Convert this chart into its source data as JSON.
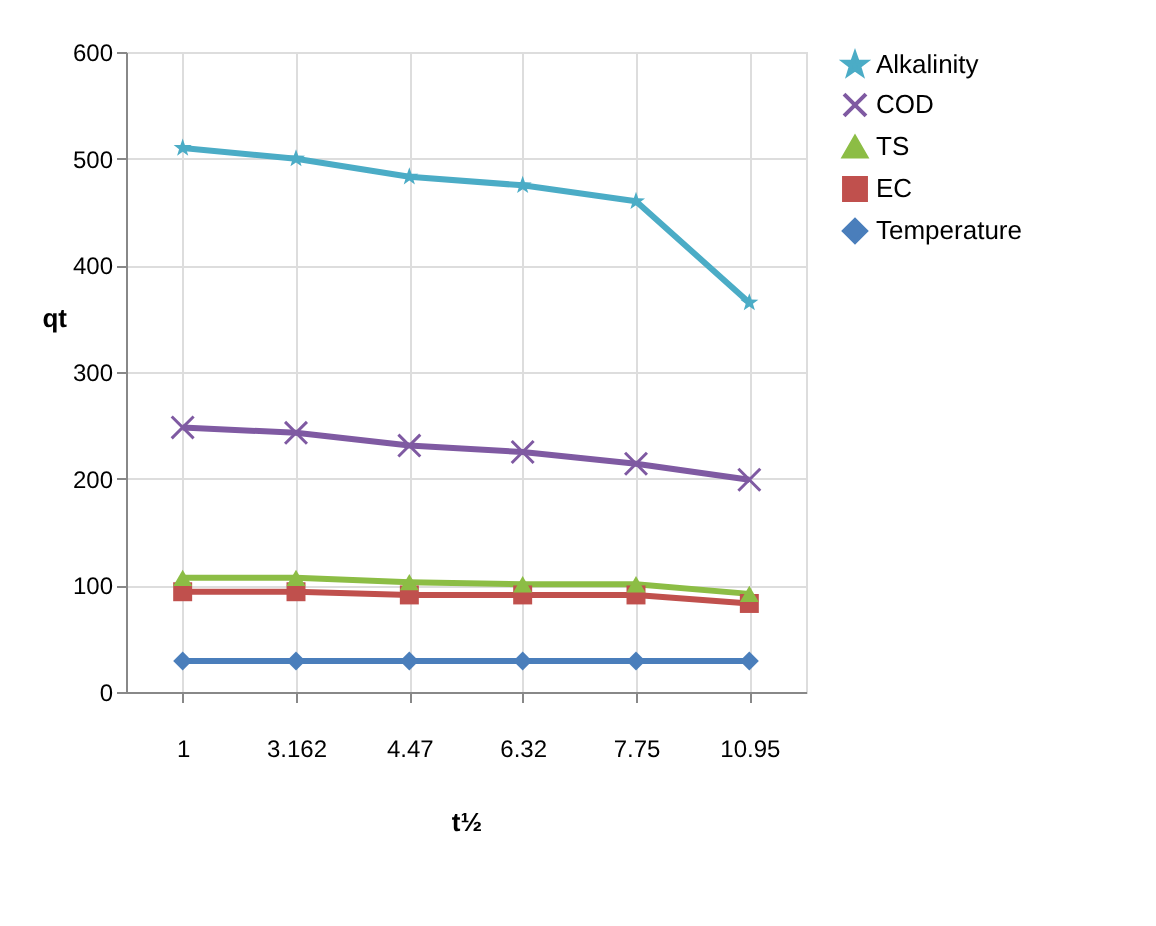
{
  "chart_data": {
    "type": "line",
    "xlabel": "t½",
    "ylabel": "qt",
    "categories": [
      "1",
      "3.162",
      "4.47",
      "6.32",
      "7.75",
      "10.95"
    ],
    "ylim": [
      0,
      600
    ],
    "yticks": [
      0,
      100,
      200,
      300,
      400,
      500,
      600
    ],
    "grid": true,
    "legend": "right",
    "line_style": "solid",
    "series": [
      {
        "name": "Alkalinity",
        "color": "#4bacc6",
        "marker": "star",
        "values": [
          510,
          500,
          483,
          475,
          460,
          365
        ]
      },
      {
        "name": "COD",
        "color": "#7f5aa2",
        "marker": "cross",
        "values": [
          248,
          243,
          231,
          225,
          214,
          199
        ]
      },
      {
        "name": "TS",
        "color": "#8cbd45",
        "marker": "triangle",
        "values": [
          107,
          107,
          103,
          101,
          101,
          92
        ]
      },
      {
        "name": "EC",
        "color": "#c0504d",
        "marker": "square",
        "values": [
          94,
          94,
          91,
          91,
          91,
          83
        ]
      },
      {
        "name": "Temperature",
        "color": "#4a7ebb",
        "marker": "diamond",
        "values": [
          29,
          29,
          29,
          29,
          29,
          29
        ]
      }
    ]
  }
}
